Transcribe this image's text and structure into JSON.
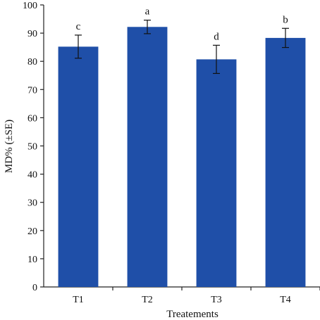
{
  "chart_data": {
    "type": "bar",
    "title": "",
    "xlabel": "Treatements",
    "ylabel": "MD% (±SE)",
    "ylim": [
      0,
      100
    ],
    "yticks": [
      0,
      10,
      20,
      30,
      40,
      50,
      60,
      70,
      80,
      90,
      100
    ],
    "categories": [
      "T1",
      "T2",
      "T3",
      "T4"
    ],
    "values": [
      85.2,
      92.2,
      80.7,
      88.3
    ],
    "errors": [
      4.1,
      2.4,
      5.0,
      3.4
    ],
    "significance_letters": [
      "c",
      "a",
      "d",
      "b"
    ],
    "bar_color": "#1f4fa8",
    "grid": false,
    "legend": "none"
  }
}
